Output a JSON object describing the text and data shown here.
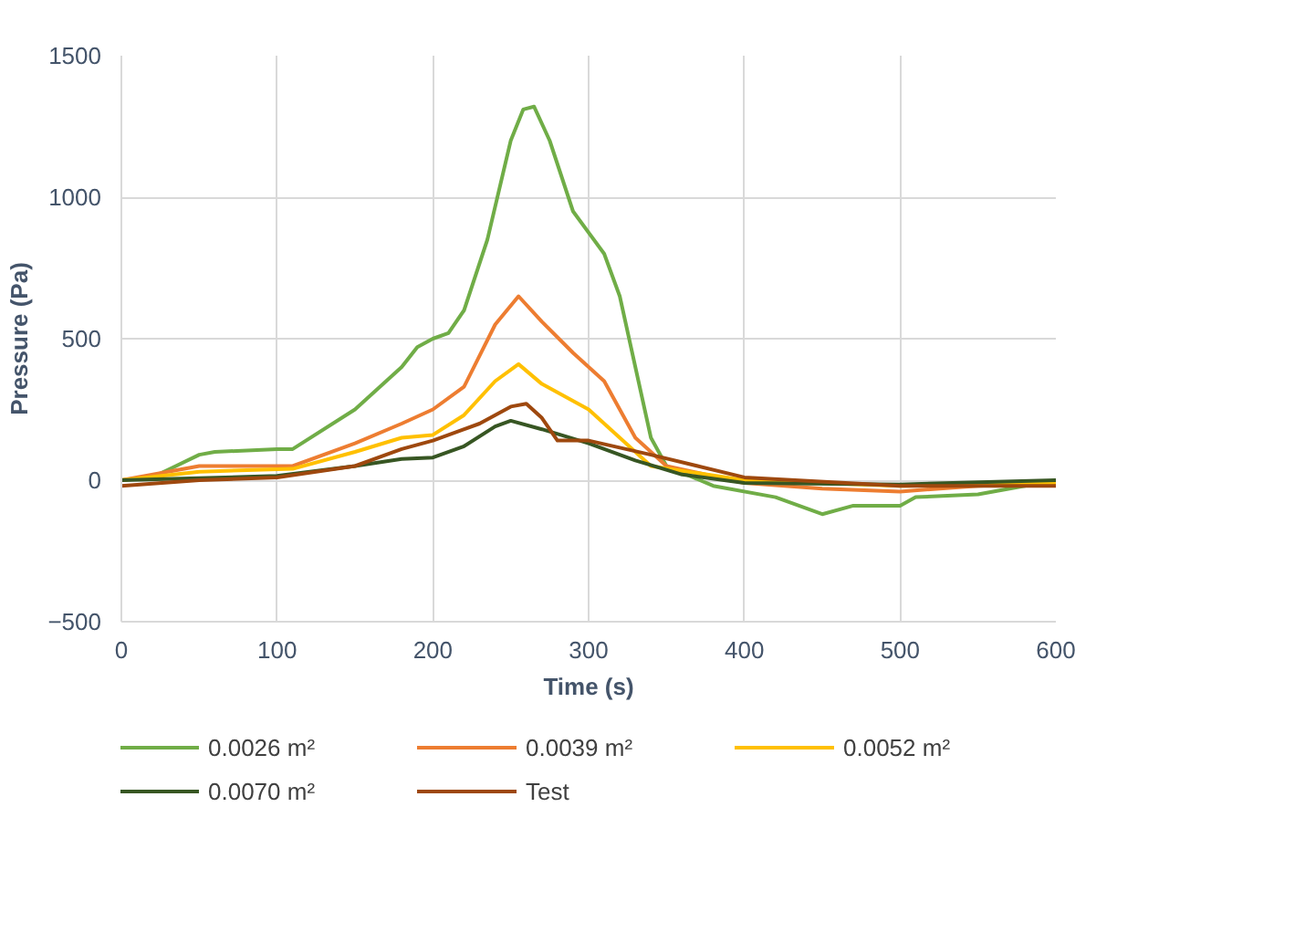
{
  "chart_data": {
    "type": "line",
    "xlabel": "Time (s)",
    "ylabel": "Pressure (Pa)",
    "xlim": [
      0,
      600
    ],
    "ylim": [
      -500,
      1500
    ],
    "xticks": [
      0,
      100,
      200,
      300,
      400,
      500,
      600
    ],
    "yticks": [
      -500,
      0,
      500,
      1000,
      1500
    ],
    "grid": true,
    "legend": "bottom",
    "series": [
      {
        "name": "0.0026 m²",
        "color": "#70ad47",
        "x": [
          0,
          20,
          50,
          60,
          100,
          110,
          150,
          180,
          190,
          200,
          210,
          220,
          235,
          250,
          258,
          265,
          275,
          290,
          310,
          320,
          330,
          340,
          350,
          380,
          420,
          450,
          470,
          500,
          510,
          550,
          580,
          600
        ],
        "values": [
          0,
          10,
          90,
          100,
          110,
          110,
          250,
          400,
          470,
          500,
          520,
          600,
          850,
          1200,
          1310,
          1320,
          1200,
          950,
          800,
          650,
          400,
          150,
          50,
          -20,
          -60,
          -120,
          -90,
          -90,
          -60,
          -50,
          -20,
          0
        ]
      },
      {
        "name": "0.0039 m²",
        "color": "#ed7d31",
        "x": [
          0,
          50,
          110,
          150,
          180,
          200,
          220,
          240,
          255,
          270,
          290,
          310,
          330,
          350,
          400,
          450,
          500,
          550,
          600
        ],
        "values": [
          0,
          50,
          50,
          130,
          200,
          250,
          330,
          550,
          650,
          560,
          450,
          350,
          150,
          50,
          -10,
          -30,
          -40,
          -20,
          -10
        ]
      },
      {
        "name": "0.0052 m²",
        "color": "#ffc000",
        "x": [
          0,
          50,
          110,
          150,
          180,
          200,
          220,
          240,
          255,
          270,
          300,
          320,
          340,
          400,
          500,
          600
        ],
        "values": [
          0,
          30,
          40,
          100,
          150,
          160,
          230,
          350,
          410,
          340,
          250,
          150,
          50,
          0,
          -20,
          -10
        ]
      },
      {
        "name": "0.0070 m²",
        "color": "#375623",
        "x": [
          0,
          100,
          150,
          180,
          200,
          220,
          240,
          250,
          270,
          300,
          330,
          360,
          400,
          500,
          600
        ],
        "values": [
          0,
          15,
          50,
          75,
          80,
          120,
          190,
          210,
          180,
          130,
          70,
          20,
          -10,
          -15,
          0
        ]
      },
      {
        "name": "Test",
        "color": "#9e480e",
        "x": [
          0,
          50,
          100,
          150,
          180,
          200,
          230,
          250,
          260,
          270,
          280,
          300,
          340,
          400,
          500,
          600
        ],
        "values": [
          -20,
          0,
          10,
          50,
          110,
          140,
          200,
          260,
          270,
          220,
          140,
          140,
          90,
          10,
          -20,
          -20
        ]
      }
    ]
  }
}
